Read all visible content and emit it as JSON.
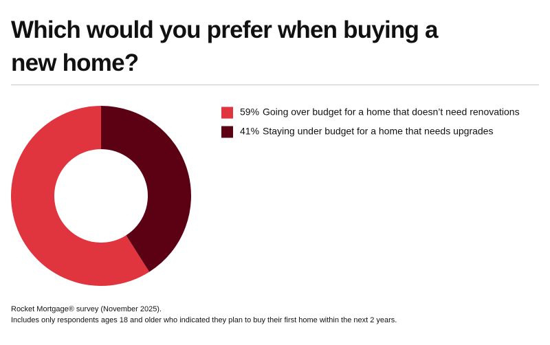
{
  "chart_data": {
    "type": "donut",
    "title": "Which would you prefer when buying a new home?",
    "categories": [
      "Going over budget for a home that doesn’t need renovations",
      "Staying under budget for a home that needs upgrades"
    ],
    "values": [
      59,
      41
    ],
    "value_labels": [
      "59%",
      "41%"
    ],
    "colors": [
      "#e0343f",
      "#5c0013"
    ],
    "direction": "counterclockwise",
    "legend": "top-right",
    "notes": [
      "Rocket Mortgage® survey (November 2025).",
      "Includes only respondents ages 18 and older who indicated they plan to buy their first home within the next 2 years."
    ]
  }
}
